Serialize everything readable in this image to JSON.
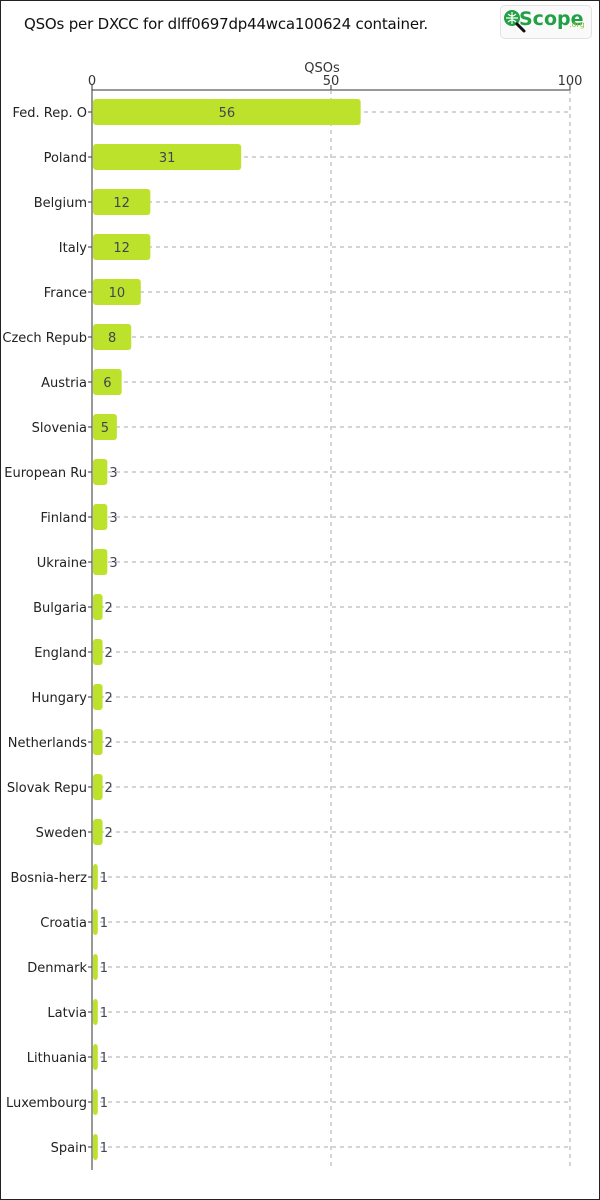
{
  "header": {
    "title": "QSOs per DXCC for dlff0697dp44wca100624 container.",
    "logo_text": "Scope",
    "logo_suffix": ".org",
    "logo_icon": "magnifier-globe-icon"
  },
  "colors": {
    "bar": "#bde22c",
    "grid": "#aaaaaa",
    "axis": "#333333",
    "logo": "#22a046"
  },
  "chart_data": {
    "type": "bar",
    "orientation": "horizontal",
    "title": "QSOs per DXCC for dlff0697dp44wca100624 container.",
    "xlabel": "QSOs",
    "ylabel": "",
    "xlim": [
      0,
      100
    ],
    "xticks": [
      0,
      50,
      100
    ],
    "grid": true,
    "legend": "none",
    "categories": [
      "Fed. Rep. O",
      "Poland",
      "Belgium",
      "Italy",
      "France",
      "Czech Repub",
      "Austria",
      "Slovenia",
      "European Ru",
      "Finland",
      "Ukraine",
      "Bulgaria",
      "England",
      "Hungary",
      "Netherlands",
      "Slovak Repu",
      "Sweden",
      "Bosnia-herz",
      "Croatia",
      "Denmark",
      "Latvia",
      "Lithuania",
      "Luxembourg",
      "Spain"
    ],
    "values": [
      56,
      31,
      12,
      12,
      10,
      8,
      6,
      5,
      3,
      3,
      3,
      2,
      2,
      2,
      2,
      2,
      2,
      1,
      1,
      1,
      1,
      1,
      1,
      1
    ]
  }
}
